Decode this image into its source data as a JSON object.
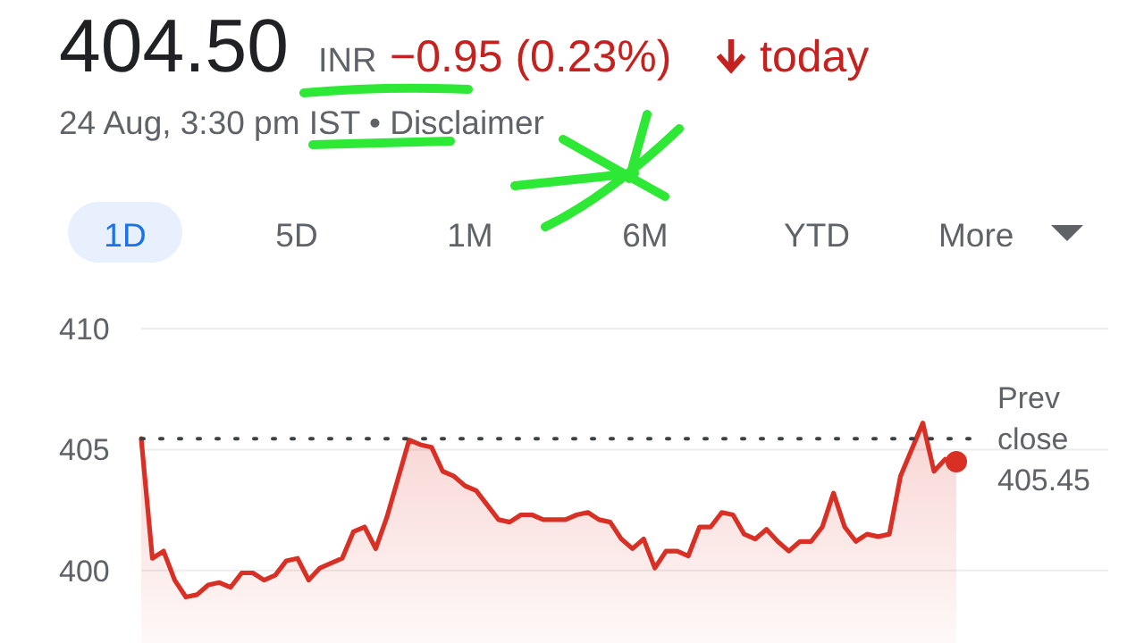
{
  "chart_data": {
    "type": "area",
    "title": "404.50",
    "annotations": [
      "INR",
      "−0.95 (0.23%)",
      "today",
      "24 Aug, 3:30 pm IST • Disclaimer",
      "1D",
      "5D",
      "1M",
      "6M",
      "YTD",
      "More"
    ],
    "categories": [
      null,
      null,
      null,
      null,
      null,
      null,
      null,
      null,
      null,
      null,
      null,
      null,
      null,
      null,
      null,
      null,
      null,
      null,
      null,
      null,
      null,
      null,
      null,
      null,
      null,
      null,
      null,
      null,
      null,
      null,
      null,
      null,
      null,
      null,
      null,
      null,
      null,
      null,
      null,
      null,
      null,
      null,
      null,
      null,
      null,
      null,
      null,
      null,
      null,
      null,
      null,
      null,
      null,
      null,
      null,
      null,
      null,
      null,
      null,
      null,
      null,
      null,
      null,
      null,
      null,
      null,
      null,
      null,
      null,
      null,
      null,
      null,
      null,
      null
    ],
    "series": [
      {
        "color": "#d93025",
        "values": [
          405.45,
          400.5,
          400.8,
          399.6,
          398.9,
          399.0,
          399.4,
          399.5,
          399.3,
          399.9,
          399.9,
          399.6,
          399.8,
          400.4,
          400.5,
          399.6,
          400.1,
          400.3,
          400.5,
          401.6,
          401.8,
          400.9,
          402.2,
          403.8,
          405.4,
          405.2,
          405.1,
          404.1,
          403.9,
          403.5,
          403.3,
          402.7,
          402.1,
          402.0,
          402.3,
          402.3,
          402.1,
          402.1,
          402.1,
          402.3,
          402.4,
          402.1,
          402.0,
          401.3,
          400.9,
          401.3,
          400.1,
          400.8,
          400.8,
          400.6,
          401.8,
          401.8,
          402.4,
          402.3,
          401.5,
          401.3,
          401.7,
          401.2,
          400.8,
          401.2,
          401.2,
          401.8,
          403.2,
          401.8,
          401.2,
          401.5,
          401.4,
          401.5,
          403.9,
          405.0,
          406.1,
          404.1,
          404.6,
          404.5
        ]
      }
    ],
    "ylim": [
      397,
      410
    ],
    "yticks": [
      400,
      405,
      410
    ],
    "grid": "y",
    "ref_lines": [
      {
        "axis": "y",
        "value": 405.45,
        "label": "Prev close 405.45",
        "color": "#3c4043",
        "line_style": "dotted"
      }
    ]
  }
}
